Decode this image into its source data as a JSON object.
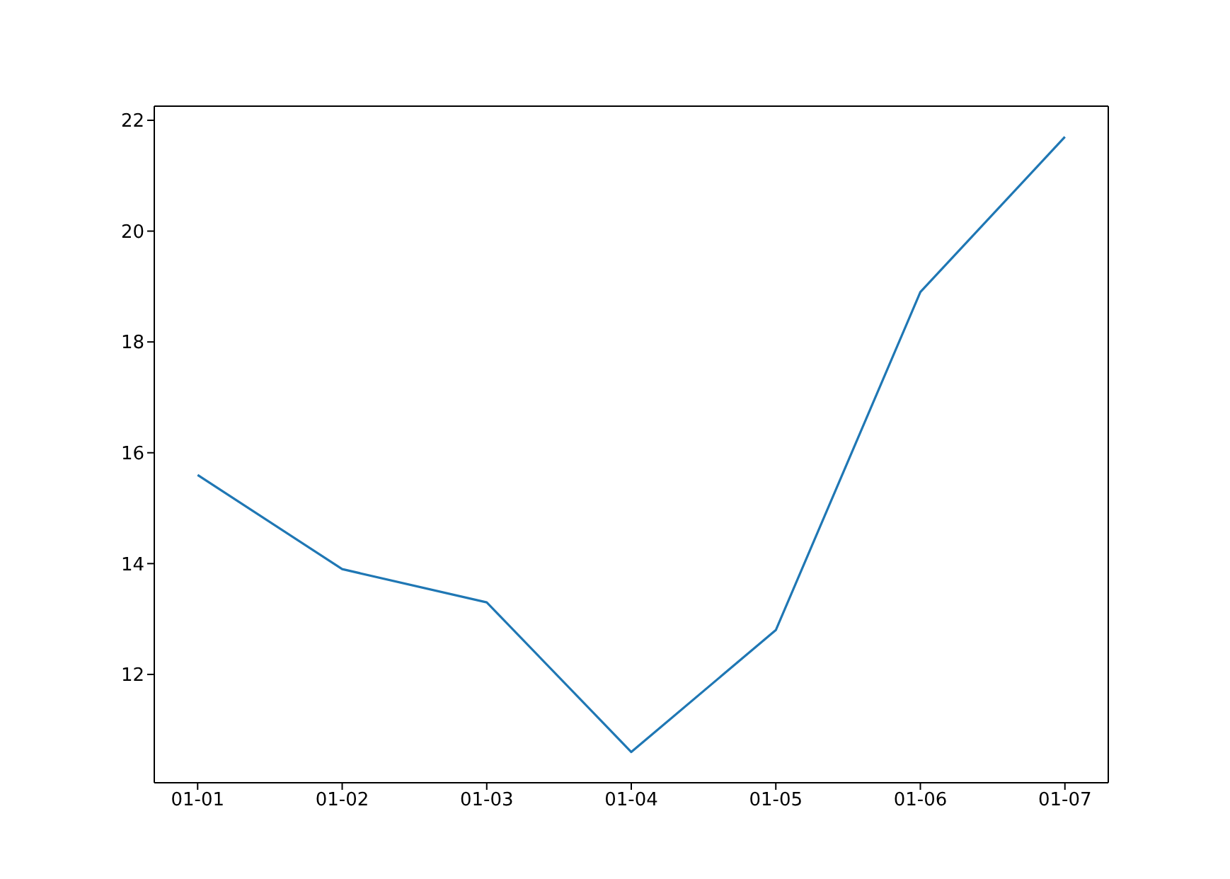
{
  "chart_data": {
    "type": "line",
    "categories": [
      "01-01",
      "01-02",
      "01-03",
      "01-04",
      "01-05",
      "01-06",
      "01-07"
    ],
    "series": [
      {
        "color": "#1f77b4",
        "values": [
          15.6,
          13.9,
          13.3,
          10.6,
          12.8,
          18.9,
          21.7
        ]
      }
    ],
    "ylim": [
      10.045,
      22.255
    ],
    "yticks": [
      12,
      14,
      16,
      18,
      20,
      22
    ],
    "grid": false,
    "legend": false,
    "marker": "none",
    "line_style": "solid"
  }
}
